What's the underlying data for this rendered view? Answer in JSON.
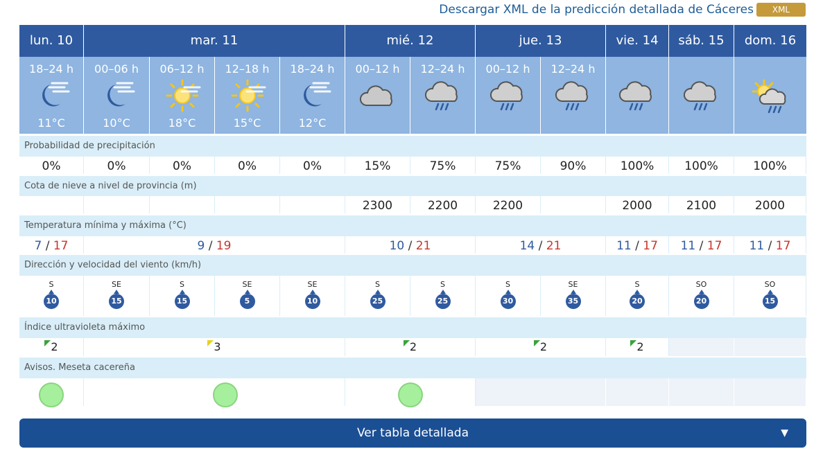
{
  "header": {
    "xml_link": "Descargar XML de la predicción detallada de Cáceres",
    "xml_badge": "XML"
  },
  "days": [
    {
      "label": "lun. 10"
    },
    {
      "label": "mar. 11"
    },
    {
      "label": "mié. 12"
    },
    {
      "label": "jue. 13"
    },
    {
      "label": "vie. 14"
    },
    {
      "label": "sáb. 15"
    },
    {
      "label": "dom. 16"
    }
  ],
  "periods": [
    {
      "label": "18–24 h",
      "icon": "moon-cloud-icon",
      "temp": "11°C"
    },
    {
      "label": "00–06 h",
      "icon": "moon-cloud-icon",
      "temp": "10°C"
    },
    {
      "label": "06–12 h",
      "icon": "sun-haze-icon",
      "temp": "18°C"
    },
    {
      "label": "12–18 h",
      "icon": "sun-haze-icon",
      "temp": "15°C"
    },
    {
      "label": "18–24 h",
      "icon": "moon-cloud-icon",
      "temp": "12°C"
    },
    {
      "label": "00–12 h",
      "icon": "cloud-icon",
      "temp": ""
    },
    {
      "label": "12–24 h",
      "icon": "cloud-rain-icon",
      "temp": ""
    },
    {
      "label": "00–12 h",
      "icon": "cloud-rain-icon",
      "temp": ""
    },
    {
      "label": "12–24 h",
      "icon": "cloud-rain-icon",
      "temp": ""
    },
    {
      "label": "",
      "icon": "cloud-rain-icon",
      "temp": ""
    },
    {
      "label": "",
      "icon": "cloud-rain-icon",
      "temp": ""
    },
    {
      "label": "",
      "icon": "sun-cloud-rain-icon",
      "temp": ""
    }
  ],
  "sections": {
    "precip": "Probabilidad de precipitación",
    "snow": "Cota de nieve a nivel de provincia (m)",
    "temp": "Temperatura mínima y máxima (°C)",
    "wind": "Dirección y velocidad del viento (km/h)",
    "uv": "Índice ultravioleta máximo",
    "alerts": "Avisos. Meseta cacereña"
  },
  "precip": [
    "0%",
    "0%",
    "0%",
    "0%",
    "0%",
    "15%",
    "75%",
    "75%",
    "90%",
    "100%",
    "100%",
    "100%"
  ],
  "snow": [
    "",
    "",
    "",
    "",
    "",
    "2300",
    "2200",
    "2200",
    "",
    "2000",
    "2100",
    "2000"
  ],
  "temps": [
    {
      "min": "7",
      "max": "17"
    },
    {
      "min": "9",
      "max": "19"
    },
    {
      "min": "10",
      "max": "21"
    },
    {
      "min": "14",
      "max": "21"
    },
    {
      "min": "11",
      "max": "17"
    },
    {
      "min": "11",
      "max": "17"
    },
    {
      "min": "11",
      "max": "17"
    }
  ],
  "temp_sep": "/",
  "wind": [
    {
      "dir": "S",
      "speed": "10"
    },
    {
      "dir": "SE",
      "speed": "15"
    },
    {
      "dir": "S",
      "speed": "15"
    },
    {
      "dir": "SE",
      "speed": "5"
    },
    {
      "dir": "SE",
      "speed": "10"
    },
    {
      "dir": "S",
      "speed": "25"
    },
    {
      "dir": "S",
      "speed": "25"
    },
    {
      "dir": "S",
      "speed": "30"
    },
    {
      "dir": "SE",
      "speed": "35"
    },
    {
      "dir": "S",
      "speed": "20"
    },
    {
      "dir": "SO",
      "speed": "20"
    },
    {
      "dir": "SO",
      "speed": "15"
    }
  ],
  "uv": [
    "2",
    "3",
    "2",
    "2",
    "2"
  ],
  "colors": {
    "header_dark": "#2f5a9f",
    "header_light": "#8fb5e0",
    "label_bg": "#d9eef8",
    "alert_green": "#a6ef9d",
    "uv_green": "#3aa33a",
    "uv_yellow": "#e8d020",
    "tmax": "#c8342b"
  },
  "button": {
    "label": "Ver tabla detallada",
    "icon": "chevron-down-icon"
  }
}
